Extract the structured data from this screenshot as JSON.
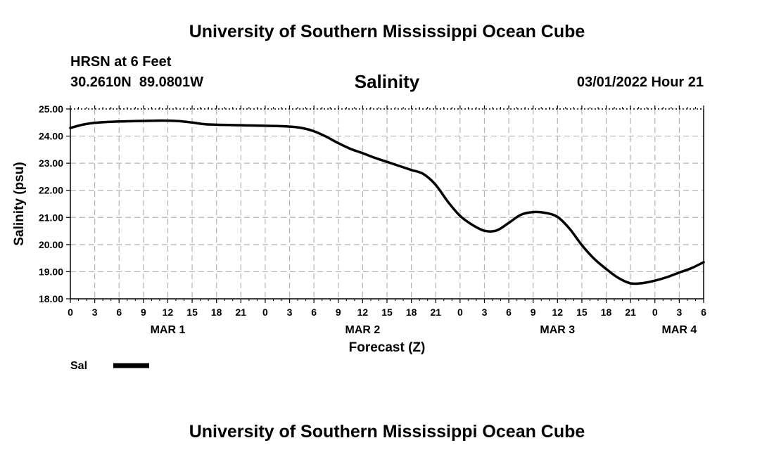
{
  "header": {
    "title": "University of Southern Mississippi Ocean Cube",
    "station": "HRSN at 6 Feet",
    "coordinates": "30.2610N  89.0801W",
    "timestamp": "03/01/2022 Hour 21",
    "footer_title": "University of Southern Mississippi Ocean Cube"
  },
  "chart_data": {
    "type": "line",
    "title": "Salinity",
    "xlabel": "Forecast (Z)",
    "ylabel": "Salinity (psu)",
    "ylim": [
      18.0,
      25.0
    ],
    "yticks": [
      "18.00",
      "19.00",
      "20.00",
      "21.00",
      "22.00",
      "23.00",
      "24.00",
      "25.00"
    ],
    "xlim": [
      0,
      78
    ],
    "x_tick_hours": [
      0,
      3,
      6,
      9,
      12,
      15,
      18,
      21,
      24,
      27,
      30,
      33,
      36,
      39,
      42,
      45,
      48,
      51,
      54,
      57,
      60,
      63,
      66,
      69,
      72,
      75,
      78
    ],
    "x_tick_labels": [
      "0",
      "3",
      "6",
      "9",
      "12",
      "15",
      "18",
      "21",
      "0",
      "3",
      "6",
      "9",
      "12",
      "15",
      "18",
      "21",
      "0",
      "3",
      "6",
      "9",
      "12",
      "15",
      "18",
      "21",
      "0",
      "3",
      "6"
    ],
    "day_labels": [
      {
        "label": "MAR 1",
        "hour": 12
      },
      {
        "label": "MAR 2",
        "hour": 36
      },
      {
        "label": "MAR 3",
        "hour": 60
      },
      {
        "label": "MAR 4",
        "hour": 75
      }
    ],
    "grid": true,
    "legend": {
      "label": "Sal",
      "placement": "bottom-left"
    },
    "series": [
      {
        "name": "Sal",
        "x": [
          0,
          1.5,
          3,
          4.5,
          6,
          7.5,
          9,
          10.5,
          12,
          13.5,
          15,
          16.5,
          18,
          19.5,
          21,
          22.5,
          24,
          25.5,
          27,
          28.5,
          30,
          31.5,
          33,
          34.5,
          36,
          37.5,
          39,
          40.5,
          42,
          43.5,
          45,
          46.5,
          48,
          49.5,
          51,
          52.5,
          54,
          55.5,
          57,
          58.5,
          60,
          61.5,
          63,
          64.5,
          66,
          67.5,
          69,
          70.5,
          72,
          73.5,
          75,
          76.5,
          78
        ],
        "values": [
          24.3,
          24.42,
          24.49,
          24.52,
          24.54,
          24.55,
          24.56,
          24.57,
          24.57,
          24.55,
          24.5,
          24.44,
          24.42,
          24.41,
          24.4,
          24.39,
          24.38,
          24.37,
          24.35,
          24.3,
          24.18,
          23.98,
          23.74,
          23.53,
          23.37,
          23.2,
          23.05,
          22.9,
          22.75,
          22.6,
          22.2,
          21.58,
          21.06,
          20.73,
          20.51,
          20.52,
          20.8,
          21.1,
          21.2,
          21.17,
          21.02,
          20.58,
          19.98,
          19.48,
          19.1,
          18.77,
          18.57,
          18.58,
          18.67,
          18.8,
          18.97,
          19.13,
          19.35
        ]
      }
    ]
  }
}
